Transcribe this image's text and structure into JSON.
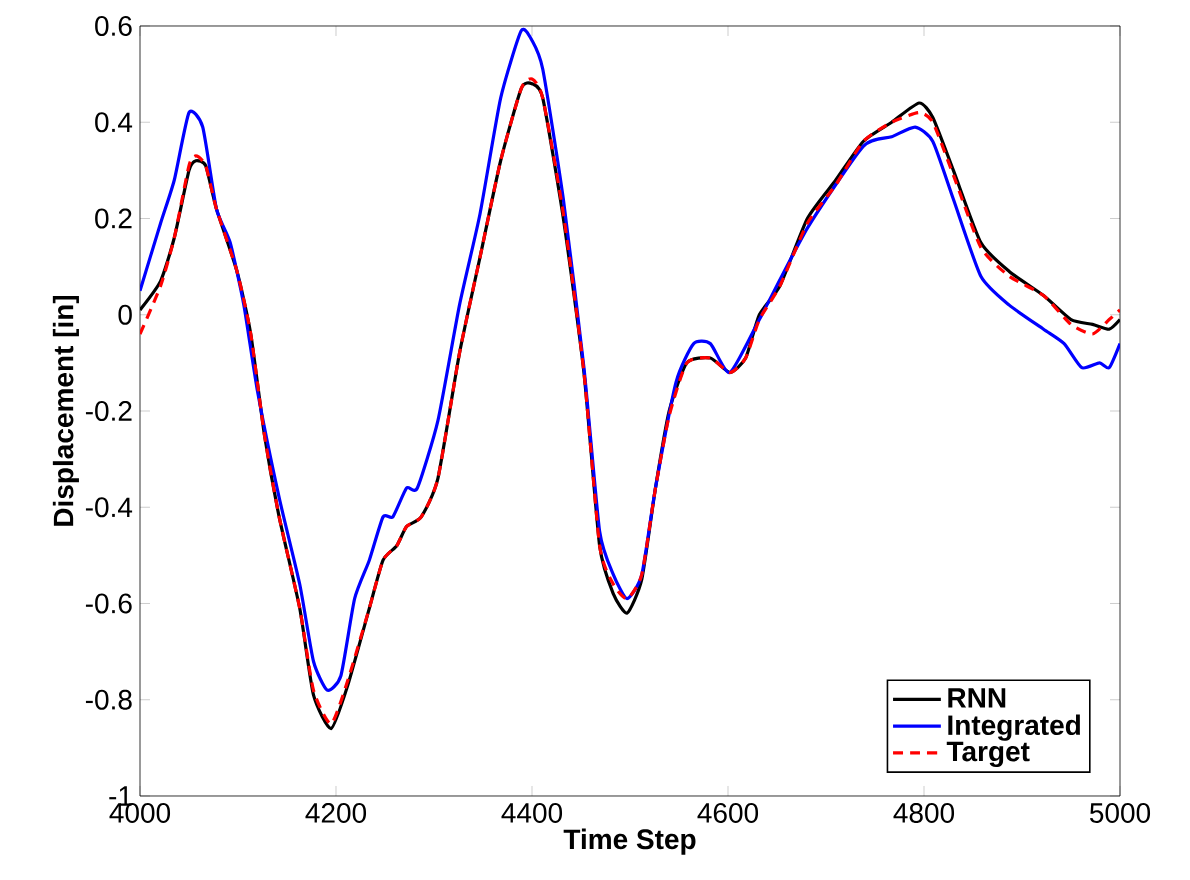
{
  "chart_data": {
    "type": "line",
    "xlabel": "Time Step",
    "ylabel": "Displacement [in]",
    "xlim": [
      4000,
      5000
    ],
    "ylim": [
      -1,
      0.6
    ],
    "xticks": [
      4000,
      4200,
      4400,
      4600,
      4800,
      5000
    ],
    "yticks": [
      -1,
      -0.8,
      -0.6,
      -0.4,
      -0.2,
      0,
      0.2,
      0.4,
      0.6
    ],
    "grid": false,
    "legend": "bottom right",
    "series": [
      {
        "name": "RNN",
        "color": "#000000",
        "line_style": "solid",
        "x": [
          4000,
          4021,
          4035,
          4050,
          4057,
          4067,
          4078,
          4099,
          4113,
          4127,
          4142,
          4163,
          4177,
          4195,
          4212,
          4234,
          4248,
          4262,
          4272,
          4287,
          4304,
          4326,
          4347,
          4368,
          4389,
          4400,
          4411,
          4432,
          4453,
          4469,
          4483,
          4497,
          4512,
          4526,
          4540,
          4558,
          4582,
          4602,
          4618,
          4632,
          4653,
          4681,
          4710,
          4738,
          4767,
          4795,
          4809,
          4830,
          4858,
          4887,
          4922,
          4950,
          4972,
          4989,
          5000
        ],
        "values": [
          0.01,
          0.07,
          0.16,
          0.3,
          0.32,
          0.31,
          0.22,
          0.09,
          -0.04,
          -0.25,
          -0.42,
          -0.61,
          -0.79,
          -0.86,
          -0.77,
          -0.61,
          -0.51,
          -0.48,
          -0.44,
          -0.42,
          -0.34,
          -0.08,
          0.12,
          0.32,
          0.47,
          0.48,
          0.45,
          0.2,
          -0.12,
          -0.48,
          -0.58,
          -0.62,
          -0.55,
          -0.36,
          -0.2,
          -0.1,
          -0.09,
          -0.12,
          -0.09,
          0,
          0.06,
          0.2,
          0.28,
          0.36,
          0.4,
          0.44,
          0.41,
          0.3,
          0.15,
          0.09,
          0.04,
          -0.01,
          -0.02,
          -0.03,
          -0.01
        ]
      },
      {
        "name": "Integrated",
        "color": "#0000ff",
        "line_style": "solid",
        "x": [
          4000,
          4021,
          4035,
          4050,
          4064,
          4078,
          4092,
          4106,
          4120,
          4142,
          4163,
          4177,
          4191,
          4205,
          4219,
          4234,
          4248,
          4258,
          4272,
          4283,
          4304,
          4326,
          4347,
          4368,
          4389,
          4400,
          4411,
          4432,
          4453,
          4469,
          4483,
          4497,
          4512,
          4526,
          4547,
          4565,
          4582,
          4602,
          4632,
          4681,
          4738,
          4767,
          4791,
          4809,
          4830,
          4858,
          4887,
          4922,
          4943,
          4961,
          4979,
          4989,
          5000
        ],
        "values": [
          0.05,
          0.19,
          0.28,
          0.42,
          0.39,
          0.22,
          0.15,
          0.02,
          -0.16,
          -0.38,
          -0.56,
          -0.72,
          -0.78,
          -0.75,
          -0.59,
          -0.51,
          -0.42,
          -0.42,
          -0.36,
          -0.36,
          -0.22,
          0.02,
          0.21,
          0.45,
          0.59,
          0.57,
          0.51,
          0.24,
          -0.11,
          -0.45,
          -0.54,
          -0.59,
          -0.54,
          -0.36,
          -0.14,
          -0.06,
          -0.06,
          -0.12,
          -0.01,
          0.18,
          0.35,
          0.37,
          0.39,
          0.36,
          0.24,
          0.08,
          0.02,
          -0.03,
          -0.06,
          -0.11,
          -0.1,
          -0.11,
          -0.06
        ]
      },
      {
        "name": "Target",
        "color": "#ff0000",
        "line_style": "dashed",
        "x": [
          4000,
          4021,
          4035,
          4050,
          4057,
          4067,
          4078,
          4099,
          4113,
          4127,
          4142,
          4163,
          4177,
          4195,
          4212,
          4234,
          4248,
          4262,
          4272,
          4287,
          4304,
          4326,
          4347,
          4368,
          4389,
          4400,
          4411,
          4432,
          4453,
          4469,
          4483,
          4497,
          4512,
          4526,
          4540,
          4558,
          4582,
          4602,
          4618,
          4632,
          4653,
          4681,
          4710,
          4738,
          4767,
          4795,
          4809,
          4830,
          4858,
          4887,
          4922,
          4950,
          4972,
          4989,
          5000
        ],
        "values": [
          -0.04,
          0.06,
          0.16,
          0.31,
          0.33,
          0.31,
          0.22,
          0.09,
          -0.04,
          -0.25,
          -0.42,
          -0.61,
          -0.78,
          -0.85,
          -0.76,
          -0.61,
          -0.51,
          -0.48,
          -0.44,
          -0.42,
          -0.34,
          -0.08,
          0.12,
          0.32,
          0.47,
          0.49,
          0.45,
          0.21,
          -0.12,
          -0.48,
          -0.56,
          -0.59,
          -0.54,
          -0.36,
          -0.21,
          -0.1,
          -0.09,
          -0.12,
          -0.09,
          -0.01,
          0.06,
          0.19,
          0.27,
          0.36,
          0.4,
          0.42,
          0.4,
          0.29,
          0.14,
          0.08,
          0.04,
          -0.02,
          -0.04,
          -0.01,
          0.01
        ]
      }
    ]
  }
}
